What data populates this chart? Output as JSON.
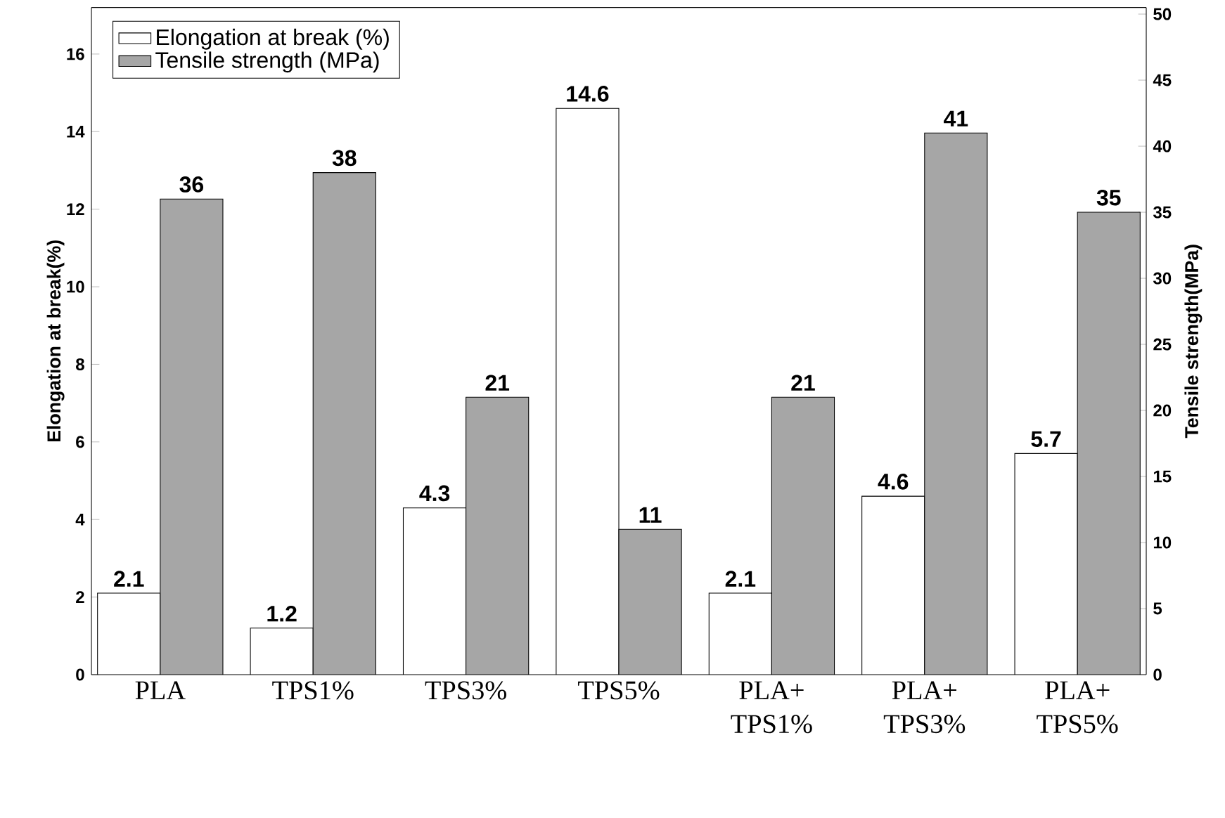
{
  "chart_data": {
    "type": "bar",
    "categories": [
      "PLA",
      "TPS1%",
      "TPS3%",
      "TPS5%",
      "PLA+ TPS1%",
      "PLA+ TPS3%",
      "PLA+ TPS5%"
    ],
    "series": [
      {
        "name": "Elongation at break (%)",
        "color": "#ffffff",
        "values": [
          2.1,
          1.2,
          4.3,
          14.6,
          2.1,
          4.6,
          5.7
        ]
      },
      {
        "name": "Tensile strength (MPa)",
        "color": "#a6a6a6",
        "axis": "y2",
        "values": [
          36,
          38,
          21,
          11,
          21,
          41,
          35
        ]
      }
    ],
    "ylabel": "Elongation at break(%)",
    "y2label": "Tensile strength(MPa)",
    "ylim": [
      0,
      17.2
    ],
    "yticks": [
      0,
      2,
      4,
      6,
      8,
      10,
      12,
      14,
      16
    ],
    "y2lim": [
      0,
      50.5
    ],
    "y2ticks": [
      0,
      5,
      10,
      15,
      20,
      25,
      30,
      35,
      40,
      45,
      50
    ],
    "data_labels": true,
    "legend": "top left",
    "grid": false
  }
}
